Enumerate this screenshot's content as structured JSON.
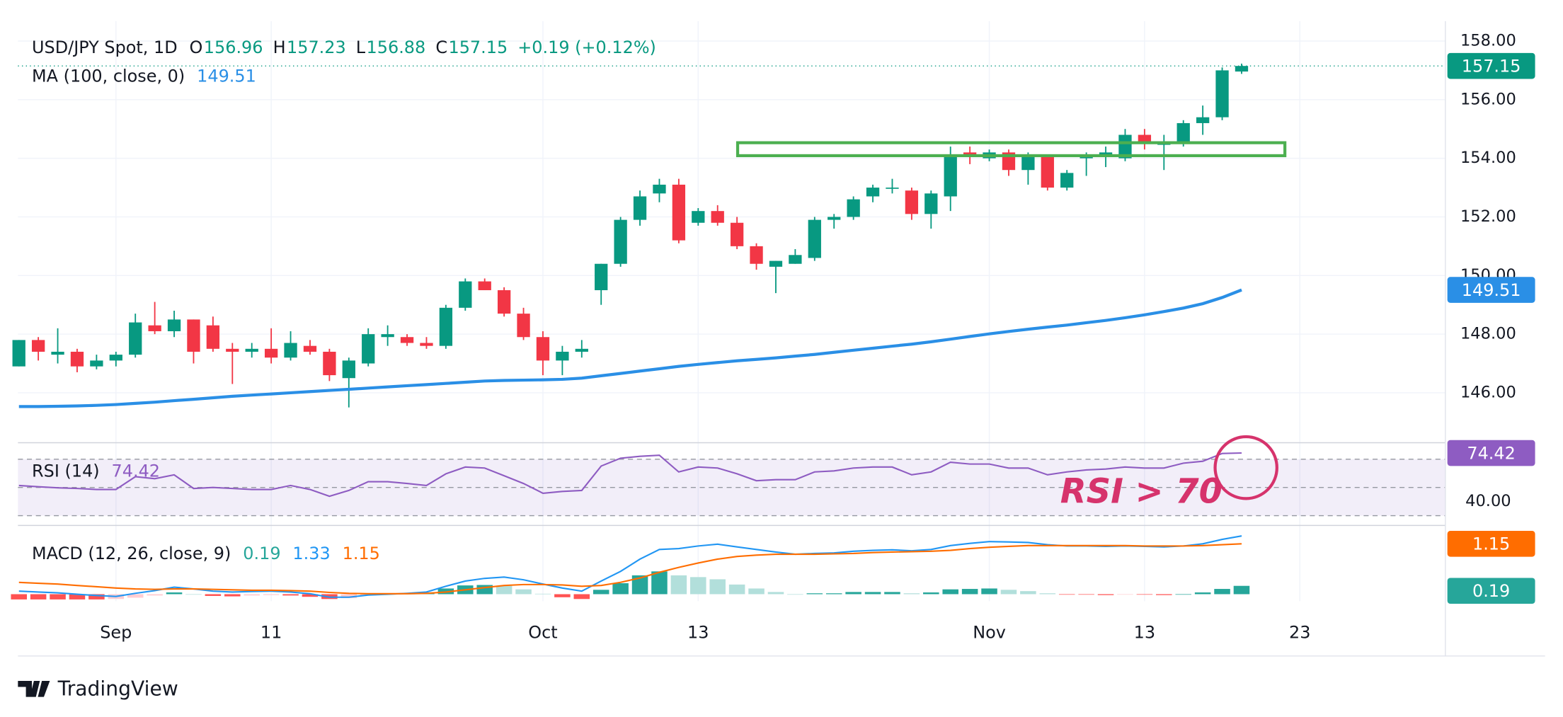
{
  "chart_data": {
    "type": "candlestick",
    "title": "USD/JPY Spot, 1D",
    "ohlc_labels": [
      "O",
      "H",
      "L",
      "C"
    ],
    "change": "+0.19 (+0.12%)",
    "up_color": "#089981",
    "down_color": "#f23645",
    "open": [
      146.9,
      147.8,
      147.3,
      147.4,
      146.9,
      147.1,
      147.3,
      148.3,
      148.1,
      148.5,
      148.3,
      147.5,
      147.4,
      147.5,
      147.2,
      147.6,
      147.4,
      146.5,
      147.0,
      147.9,
      147.9,
      147.7,
      147.6,
      148.9,
      149.8,
      149.5,
      148.7,
      147.9,
      147.1,
      147.4,
      149.5,
      150.4,
      151.9,
      152.8,
      153.1,
      151.8,
      152.2,
      151.8,
      151.0,
      150.3,
      150.4,
      150.6,
      151.9,
      152.0,
      152.7,
      153.0,
      152.9,
      152.1,
      152.7,
      154.2,
      154.0,
      154.2,
      153.6,
      154.1,
      153.0,
      154.0,
      154.1,
      154.0,
      154.8,
      154.5,
      154.5,
      155.2,
      155.4,
      156.96
    ],
    "high": [
      147.8,
      147.9,
      148.2,
      147.5,
      147.3,
      147.4,
      148.7,
      149.1,
      148.8,
      148.5,
      148.6,
      147.7,
      147.7,
      148.2,
      148.1,
      147.8,
      147.5,
      147.2,
      148.2,
      148.3,
      148.0,
      147.9,
      149.0,
      149.9,
      149.9,
      149.6,
      148.9,
      148.1,
      147.6,
      147.8,
      150.4,
      152.0,
      152.9,
      153.3,
      153.3,
      152.3,
      152.4,
      152.0,
      151.1,
      150.5,
      150.9,
      152.0,
      152.1,
      152.7,
      153.1,
      153.3,
      153.0,
      152.9,
      154.4,
      154.4,
      154.3,
      154.3,
      154.2,
      154.1,
      153.6,
      154.2,
      154.4,
      155.0,
      155.0,
      154.8,
      155.3,
      155.8,
      157.1,
      157.23
    ],
    "low": [
      146.9,
      147.1,
      147.0,
      146.7,
      146.8,
      146.9,
      147.2,
      148.0,
      147.9,
      147.0,
      147.4,
      146.3,
      147.2,
      147.0,
      147.1,
      147.3,
      146.4,
      145.5,
      146.9,
      147.6,
      147.6,
      147.5,
      147.5,
      148.8,
      149.5,
      148.6,
      147.8,
      146.6,
      146.6,
      147.2,
      149.0,
      150.3,
      151.7,
      152.5,
      151.1,
      151.7,
      151.7,
      150.9,
      150.2,
      149.4,
      150.4,
      150.5,
      151.6,
      151.9,
      152.5,
      152.8,
      151.9,
      151.6,
      152.2,
      153.8,
      153.9,
      153.4,
      153.1,
      152.9,
      152.9,
      153.4,
      153.7,
      153.9,
      154.3,
      153.6,
      154.4,
      154.8,
      155.3,
      156.88
    ],
    "close": [
      147.8,
      147.4,
      147.4,
      146.9,
      147.1,
      147.3,
      148.4,
      148.1,
      148.5,
      147.4,
      147.5,
      147.4,
      147.5,
      147.2,
      147.7,
      147.4,
      146.6,
      147.1,
      148.0,
      148.0,
      147.7,
      147.6,
      148.9,
      149.8,
      149.5,
      148.7,
      147.9,
      147.1,
      147.4,
      147.5,
      150.4,
      151.9,
      152.7,
      153.1,
      151.2,
      152.2,
      151.8,
      151.0,
      150.4,
      150.5,
      150.7,
      151.9,
      152.0,
      152.6,
      153.0,
      153.0,
      152.1,
      152.8,
      154.1,
      154.1,
      154.2,
      153.6,
      154.1,
      153.0,
      153.5,
      154.1,
      154.2,
      154.8,
      154.5,
      154.5,
      155.2,
      155.4,
      157.0,
      157.15
    ],
    "xlim": [
      -0.05,
      73.5
    ],
    "xticks": [
      {
        "value": 5,
        "label": "Sep"
      },
      {
        "value": 13,
        "label": "11"
      },
      {
        "value": 27,
        "label": "Oct"
      },
      {
        "value": 35,
        "label": "13"
      },
      {
        "value": 50,
        "label": "Nov"
      },
      {
        "value": 58,
        "label": "13"
      },
      {
        "value": 66,
        "label": "23"
      }
    ],
    "ylim": [
      144.33,
      158.68
    ],
    "yticks": [
      {
        "value": 146,
        "label": "146.00"
      },
      {
        "value": 148,
        "label": "148.00"
      },
      {
        "value": 150,
        "label": "150.00"
      },
      {
        "value": 152,
        "label": "152.00"
      },
      {
        "value": 154,
        "label": "154.00"
      },
      {
        "value": 156,
        "label": "156.00"
      },
      {
        "value": 158,
        "label": "158.00"
      }
    ],
    "grid": true,
    "ma": {
      "name": "MA (100, close, 0)",
      "color": "#2a8fe6",
      "values": [
        145.53,
        145.53,
        145.54,
        145.55,
        145.57,
        145.6,
        145.64,
        145.68,
        145.73,
        145.78,
        145.83,
        145.88,
        145.92,
        145.96,
        146.0,
        146.04,
        146.08,
        146.12,
        146.16,
        146.2,
        146.24,
        146.28,
        146.32,
        146.36,
        146.4,
        146.42,
        146.43,
        146.44,
        146.46,
        146.5,
        146.58,
        146.66,
        146.74,
        146.82,
        146.9,
        146.97,
        147.03,
        147.09,
        147.14,
        147.19,
        147.25,
        147.31,
        147.38,
        147.45,
        147.52,
        147.59,
        147.66,
        147.74,
        147.83,
        147.92,
        148.01,
        148.09,
        148.17,
        148.24,
        148.31,
        148.39,
        148.47,
        148.56,
        148.66,
        148.77,
        148.89,
        149.04,
        149.25,
        149.51
      ]
    },
    "rsi": {
      "name": "RSI (14)",
      "color": "#8e5cc2",
      "values": [
        51.4,
        50.5,
        49.8,
        49.3,
        48.6,
        48.6,
        57.6,
        56.2,
        59.0,
        49.3,
        50.0,
        49.3,
        48.6,
        48.6,
        51.4,
        48.6,
        43.8,
        47.9,
        54.1,
        54.1,
        52.8,
        51.4,
        59.7,
        64.5,
        63.8,
        58.3,
        52.8,
        45.9,
        47.2,
        47.9,
        65.2,
        70.7,
        72.1,
        72.8,
        61.0,
        64.5,
        63.8,
        59.7,
        54.8,
        55.5,
        55.5,
        61.0,
        61.7,
        63.8,
        64.5,
        64.5,
        59.0,
        61.0,
        67.9,
        66.6,
        66.6,
        63.8,
        63.8,
        59.0,
        61.0,
        62.4,
        63.1,
        64.5,
        63.8,
        63.8,
        67.2,
        68.6,
        74.1,
        74.42
      ],
      "ylim": [
        24.5,
        80.3
      ],
      "yticks": [
        {
          "value": 40,
          "label": "40.00"
        }
      ],
      "levels": [
        30,
        50,
        70
      ]
    },
    "macd": {
      "name": "MACD (12, 26, close, 9)",
      "ylim": [
        -0.16,
        1.5
      ],
      "histogram_colors": [
        "#26a69a",
        "#b2dfdb",
        "#ff5252",
        "#ffcdd2"
      ],
      "histogram": [
        -0.12,
        -0.12,
        -0.12,
        -0.12,
        -0.12,
        -0.11,
        -0.08,
        -0.03,
        0.04,
        0.0,
        -0.04,
        -0.05,
        -0.03,
        -0.02,
        -0.03,
        -0.06,
        -0.11,
        -0.09,
        -0.03,
        -0.01,
        0.01,
        0.03,
        0.13,
        0.2,
        0.21,
        0.19,
        0.11,
        0.01,
        -0.07,
        -0.11,
        0.1,
        0.25,
        0.43,
        0.52,
        0.43,
        0.39,
        0.34,
        0.22,
        0.13,
        0.05,
        0.0,
        0.02,
        0.02,
        0.05,
        0.05,
        0.05,
        0.02,
        0.04,
        0.11,
        0.12,
        0.13,
        0.1,
        0.07,
        0.02,
        -0.01,
        -0.01,
        -0.02,
        -0.01,
        -0.01,
        -0.02,
        0.0,
        0.04,
        0.12,
        0.19
      ],
      "macd": {
        "color": "#2196f3",
        "values": [
          0.07,
          0.05,
          0.03,
          0.0,
          -0.03,
          -0.05,
          0.02,
          0.08,
          0.16,
          0.12,
          0.07,
          0.05,
          0.06,
          0.07,
          0.05,
          0.01,
          -0.07,
          -0.07,
          -0.02,
          0.0,
          0.02,
          0.05,
          0.18,
          0.3,
          0.36,
          0.39,
          0.33,
          0.23,
          0.14,
          0.07,
          0.3,
          0.52,
          0.8,
          1.02,
          1.04,
          1.1,
          1.14,
          1.08,
          1.02,
          0.96,
          0.91,
          0.93,
          0.94,
          0.98,
          1.0,
          1.01,
          0.99,
          1.02,
          1.11,
          1.16,
          1.2,
          1.19,
          1.18,
          1.13,
          1.1,
          1.1,
          1.09,
          1.1,
          1.09,
          1.08,
          1.1,
          1.15,
          1.25,
          1.33
        ]
      },
      "signal": {
        "color": "#ff6d00",
        "values": [
          0.27,
          0.25,
          0.23,
          0.2,
          0.17,
          0.14,
          0.12,
          0.11,
          0.12,
          0.12,
          0.11,
          0.1,
          0.09,
          0.09,
          0.08,
          0.07,
          0.04,
          0.02,
          0.01,
          0.01,
          0.01,
          0.02,
          0.05,
          0.1,
          0.15,
          0.2,
          0.22,
          0.22,
          0.21,
          0.18,
          0.2,
          0.27,
          0.37,
          0.5,
          0.61,
          0.71,
          0.8,
          0.86,
          0.89,
          0.91,
          0.91,
          0.91,
          0.92,
          0.93,
          0.95,
          0.96,
          0.97,
          0.98,
          1.0,
          1.04,
          1.07,
          1.09,
          1.11,
          1.11,
          1.11,
          1.11,
          1.11,
          1.11,
          1.1,
          1.1,
          1.1,
          1.11,
          1.13,
          1.15
        ]
      }
    },
    "annotation": "RSI > 70",
    "brand": "TradingView"
  }
}
